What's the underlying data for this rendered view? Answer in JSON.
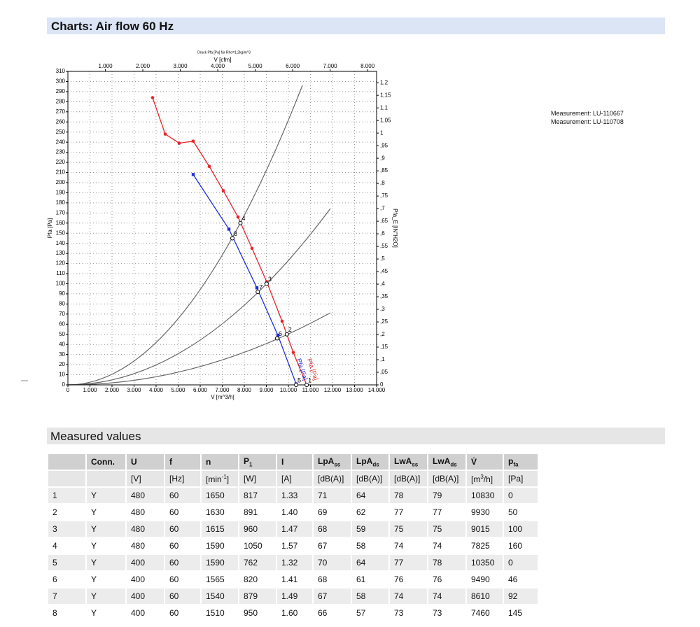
{
  "header": {
    "title": "Charts: Air flow 60 Hz"
  },
  "chart_data": {
    "type": "line",
    "title": "Druck Pfa [Pa] für Rho=1,2kg/m^3",
    "x_label": "V [m^3/h]",
    "x2_label": "V [cfm]",
    "y_label": "Pfa [Pa]",
    "y2_label": "Pfa_E [IN\"H2O]",
    "xlim": [
      0,
      14000
    ],
    "x2lim": [
      0,
      8240
    ],
    "ylim": [
      0,
      310
    ],
    "y2lim": [
      0,
      1.245
    ],
    "xticks": [
      0,
      {
        "value": 1000,
        "label": "1.000"
      },
      {
        "value": 2000,
        "label": "2.000"
      },
      {
        "value": 3000,
        "label": "3.000"
      },
      {
        "value": 4000,
        "label": "4.000"
      },
      {
        "value": 5000,
        "label": "5.000"
      },
      {
        "value": 6000,
        "label": "6.000"
      },
      {
        "value": 7000,
        "label": "7.000"
      },
      {
        "value": 8000,
        "label": "8.000"
      },
      {
        "value": 9000,
        "label": "9.000"
      },
      {
        "value": 10000,
        "label": "10.000"
      },
      {
        "value": 11000,
        "label": "11.000"
      },
      {
        "value": 12000,
        "label": "12.000"
      },
      {
        "value": 13000,
        "label": "13.000"
      },
      {
        "value": 14000,
        "label": "14.000"
      }
    ],
    "x2ticks": [
      {
        "value": 1000,
        "label": "1.000"
      },
      {
        "value": 2000,
        "label": "2.000"
      },
      {
        "value": 3000,
        "label": "3.000"
      },
      {
        "value": 4000,
        "label": "4.000"
      },
      {
        "value": 5000,
        "label": "5.000"
      },
      {
        "value": 6000,
        "label": "6.000"
      },
      {
        "value": 7000,
        "label": "7.000"
      },
      {
        "value": 8000,
        "label": "8.000"
      }
    ],
    "yticks": [
      0,
      10,
      20,
      30,
      40,
      50,
      60,
      70,
      80,
      90,
      100,
      110,
      120,
      130,
      140,
      150,
      160,
      170,
      180,
      190,
      200,
      210,
      220,
      230,
      240,
      250,
      260,
      270,
      280,
      290,
      300,
      310
    ],
    "y2ticks": [
      0,
      {
        "value": 0.05,
        "label": ",05"
      },
      {
        "value": 0.1,
        "label": ",1"
      },
      {
        "value": 0.15,
        "label": ",15"
      },
      {
        "value": 0.2,
        "label": ",2"
      },
      {
        "value": 0.25,
        "label": ",25"
      },
      {
        "value": 0.3,
        "label": ",3"
      },
      {
        "value": 0.35,
        "label": ",35"
      },
      {
        "value": 0.4,
        "label": ",4"
      },
      {
        "value": 0.45,
        "label": ",45"
      },
      {
        "value": 0.5,
        "label": ",5"
      },
      {
        "value": 0.55,
        "label": ",55"
      },
      {
        "value": 0.6,
        "label": ",6"
      },
      {
        "value": 0.65,
        "label": ",65"
      },
      {
        "value": 0.7,
        "label": ",7"
      },
      {
        "value": 0.75,
        "label": ",75"
      },
      {
        "value": 0.8,
        "label": ",8"
      },
      {
        "value": 0.85,
        "label": ",85"
      },
      {
        "value": 0.9,
        "label": ",9"
      },
      {
        "value": 0.95,
        "label": ",95"
      },
      1,
      {
        "value": 1.05,
        "label": "1,05"
      },
      {
        "value": 1.1,
        "label": "1,1"
      },
      {
        "value": 1.15,
        "label": "1,15"
      },
      {
        "value": 1.2,
        "label": "1,2"
      }
    ],
    "grid": true,
    "series": [
      {
        "name": "Pfa [Pa]",
        "color": "#e8232a",
        "x": [
          3841,
          4413,
          5048,
          5683,
          6413,
          7048,
          7714,
          8349,
          9016,
          9714,
          10222,
          10830
        ],
        "values": [
          284,
          248,
          239,
          241,
          216,
          192,
          166,
          135,
          102,
          63,
          32,
          0
        ]
      },
      {
        "name": "Pfa [Pa]",
        "color": "#1f2fd8",
        "x": [
          5683,
          7302,
          8571,
          9524,
          10350
        ],
        "values": [
          208,
          154,
          96,
          49,
          1
        ]
      }
    ]
  },
  "measurements": [
    "Measurement: LU-110667",
    "Measurement: LU-110708"
  ],
  "section": {
    "title": "Measured values"
  },
  "table": {
    "header": [
      null,
      "Conn.",
      "U",
      "f",
      "n",
      [
        "P",
        "1"
      ],
      "I",
      [
        "LpA",
        "ss"
      ],
      [
        "LpA",
        "ds"
      ],
      [
        "LwA",
        "ss"
      ],
      [
        "LwA",
        "ds"
      ],
      "V̇",
      [
        "p",
        "fa"
      ]
    ],
    "units": [
      null,
      null,
      "[V]",
      "[Hz]",
      [
        "[min",
        "-1",
        "]"
      ],
      "[W]",
      "[A]",
      "[dB(A)]",
      "[dB(A)]",
      "[dB(A)]",
      "[dB(A)]",
      [
        "[m",
        "3",
        "/h]"
      ],
      "[Pa]"
    ],
    "rows": [
      [
        1,
        "Y",
        480,
        60,
        1650,
        817,
        "1.33",
        71,
        64,
        78,
        79,
        10830,
        0
      ],
      [
        2,
        "Y",
        480,
        60,
        1630,
        891,
        "1.40",
        69,
        62,
        77,
        77,
        9930,
        50
      ],
      [
        3,
        "Y",
        480,
        60,
        1615,
        960,
        "1.47",
        68,
        59,
        75,
        75,
        9015,
        100
      ],
      [
        4,
        "Y",
        480,
        60,
        1590,
        1050,
        "1.57",
        67,
        58,
        74,
        74,
        7825,
        160
      ],
      [
        5,
        "Y",
        400,
        60,
        1590,
        762,
        "1.32",
        70,
        64,
        77,
        78,
        10350,
        0
      ],
      [
        6,
        "Y",
        400,
        60,
        1565,
        820,
        "1.41",
        68,
        61,
        76,
        76,
        9490,
        46
      ],
      [
        7,
        "Y",
        400,
        60,
        1540,
        879,
        "1.49",
        67,
        58,
        74,
        74,
        8610,
        92
      ],
      [
        8,
        "Y",
        400,
        60,
        1510,
        950,
        "1.60",
        66,
        57,
        73,
        73,
        7460,
        145
      ]
    ]
  }
}
